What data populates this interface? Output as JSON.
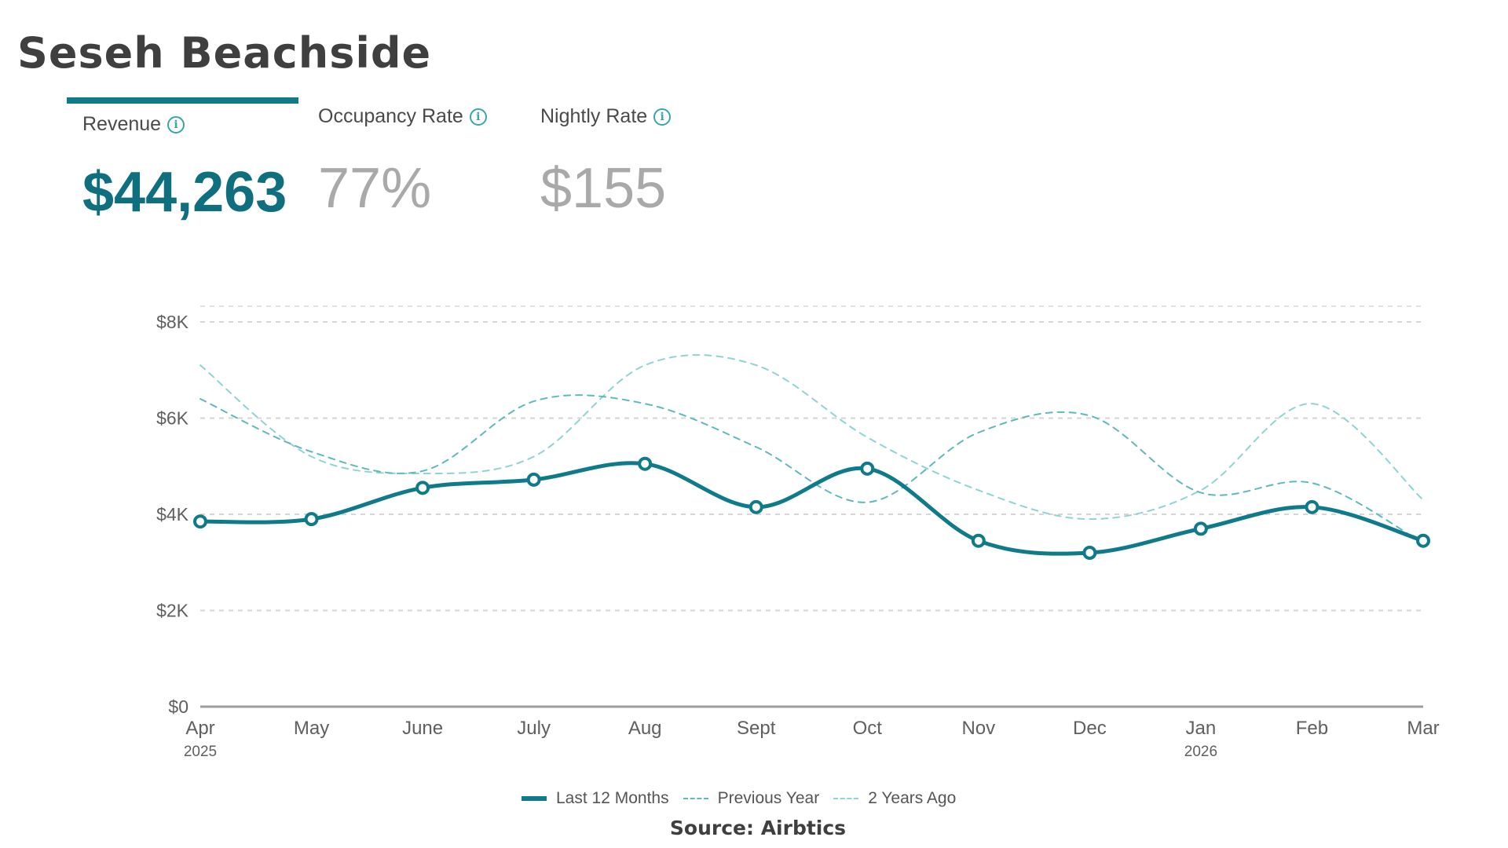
{
  "title": "Seseh Beachside",
  "kpis": [
    {
      "label": "Revenue",
      "value": "$44,263",
      "active": true
    },
    {
      "label": "Occupancy Rate",
      "value": "77%",
      "active": false
    },
    {
      "label": "Nightly Rate",
      "value": "$155",
      "active": false
    }
  ],
  "icons": {
    "info": "info-circle-icon"
  },
  "colors": {
    "accent": "#0f7b8a",
    "series_main": "#0f7b8a",
    "series_light": "#6cc3c5",
    "muted": "#a9a9a9"
  },
  "source": "Source: Airbtics",
  "chart_data": {
    "type": "line",
    "categories": [
      "Apr",
      "May",
      "June",
      "July",
      "Aug",
      "Sept",
      "Oct",
      "Nov",
      "Dec",
      "Jan",
      "Feb",
      "Mar"
    ],
    "category_years": [
      "2025",
      "",
      "",
      "",
      "",
      "",
      "",
      "",
      "",
      "2026",
      "",
      ""
    ],
    "yticks": [
      "$0",
      "$2K",
      "$4K",
      "$6K",
      "$8K"
    ],
    "ylim": [
      0,
      8000
    ],
    "series": [
      {
        "name": "Last 12 Months",
        "style": "solid",
        "values": [
          3850,
          3900,
          4550,
          4720,
          5050,
          4150,
          4950,
          3450,
          3200,
          3700,
          4150,
          3450
        ]
      },
      {
        "name": "Previous Year",
        "style": "dashed",
        "values": [
          6400,
          5300,
          4900,
          6350,
          6300,
          5400,
          4250,
          5700,
          6050,
          4450,
          4650,
          3400
        ]
      },
      {
        "name": "2 Years Ago",
        "style": "dashed",
        "values": [
          7100,
          5200,
          4850,
          5200,
          7100,
          7100,
          5600,
          4500,
          3900,
          4500,
          6300,
          4300
        ]
      }
    ],
    "grid": true,
    "legend_position": "bottom"
  }
}
